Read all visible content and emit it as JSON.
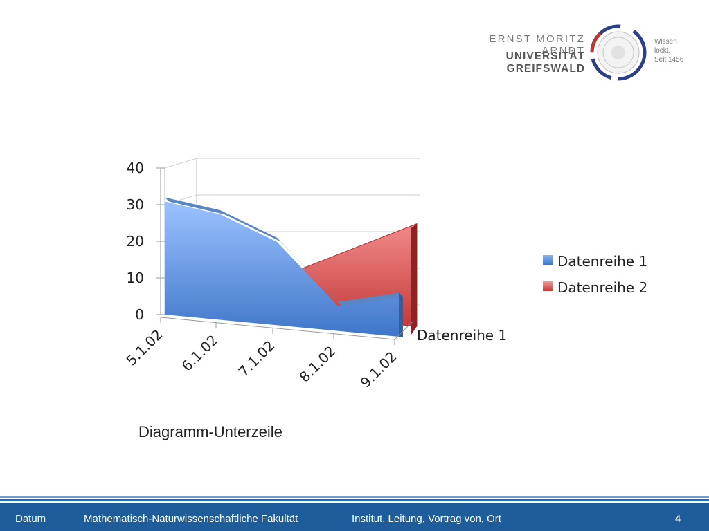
{
  "logo": {
    "line1": "ERNST MORITZ ARNDT",
    "line2": "UNIVERSITÄT GREIFSWALD",
    "motto": [
      "Wissen",
      "lockt.",
      "Seit 1456"
    ],
    "seal_icon": "university-seal-icon"
  },
  "subline": "Diagramm-Unterzeile",
  "footer": {
    "date": "Datum",
    "faculty": "Mathematisch-Naturwissenschaftliche Fakultät",
    "institute": "Institut, Leitung, Vortrag von, Ort",
    "page": "4"
  },
  "colors": {
    "series1": "#4f86d6",
    "series2": "#e05a5a",
    "footer": "#1f5d9a"
  },
  "chart_data": {
    "type": "area",
    "style": "3d",
    "categories": [
      "5.1.02",
      "6.1.02",
      "7.1.02",
      "8.1.02",
      "9.1.02"
    ],
    "series": [
      {
        "name": "Datenreihe 1",
        "values": [
          32,
          30,
          24,
          8,
          12
        ]
      },
      {
        "name": "Datenreihe 2",
        "values": [
          null,
          null,
          12,
          20,
          28
        ]
      }
    ],
    "y_ticks": [
      0,
      10,
      20,
      30,
      40
    ],
    "ylim": [
      0,
      40
    ],
    "depth_axis_label": "Datenreihe 1",
    "legend": [
      "Datenreihe 1",
      "Datenreihe 2"
    ],
    "legend_position": "right",
    "grid": true
  }
}
